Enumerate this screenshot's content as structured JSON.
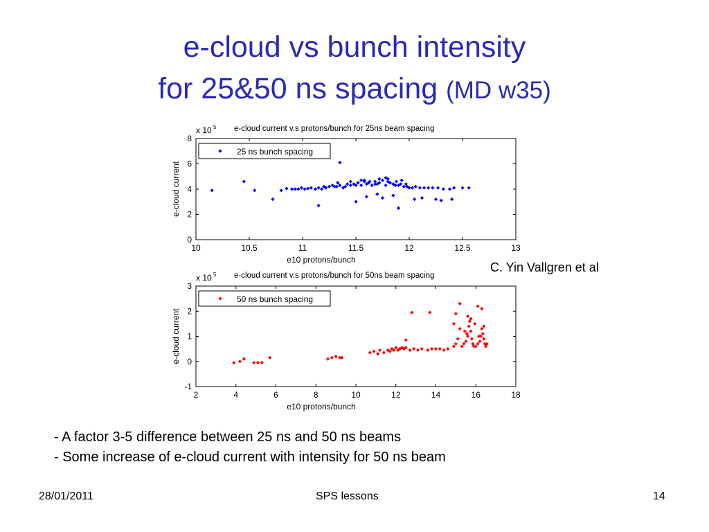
{
  "slide": {
    "title_line1": "e-cloud vs bunch intensity",
    "title_line2": "for 25&50 ns spacing",
    "title_suffix": "(MD w35)",
    "credit": "C. Yin Vallgren et al",
    "bullets": [
      "-  A factor 3-5 difference between 25 ns and 50 ns beams",
      "- Some increase of e-cloud current with intensity for 50 ns beam"
    ],
    "footer": {
      "date": "28/01/2011",
      "center": "SPS lessons",
      "page": "14"
    }
  },
  "chart_data": [
    {
      "type": "scatter",
      "title": "e-cloud current v.s protons/bunch for 25ns beam spacing",
      "xlabel": "e10 protons/bunch",
      "ylabel": "e-cloud current",
      "y_multiplier": "x 10",
      "y_multiplier_exp": "5",
      "xlim": [
        10,
        13
      ],
      "ylim": [
        0,
        8
      ],
      "xticks": [
        10,
        10.5,
        11,
        11.5,
        12,
        12.5,
        13
      ],
      "xtick_labels": [
        "10",
        "10.5",
        "11",
        "11.5",
        "12",
        "12.5",
        "13"
      ],
      "yticks": [
        0,
        2,
        4,
        6,
        8
      ],
      "ytick_labels": [
        "0",
        "2",
        "4",
        "6",
        "8"
      ],
      "legend_position": "top-left",
      "series": [
        {
          "name": "25 ns bunch spacing",
          "color": "#0000ff",
          "marker": "diamond",
          "x": [
            10.15,
            10.45,
            10.55,
            10.72,
            10.8,
            10.85,
            10.9,
            10.93,
            10.96,
            10.99,
            11.02,
            11.05,
            11.08,
            11.12,
            11.15,
            11.18,
            11.2,
            11.22,
            11.25,
            11.28,
            11.3,
            11.32,
            11.35,
            11.38,
            11.4,
            11.42,
            11.45,
            11.48,
            11.5,
            11.52,
            11.55,
            11.58,
            11.6,
            11.62,
            11.65,
            11.68,
            11.7,
            11.72,
            11.75,
            11.78,
            11.8,
            11.82,
            11.85,
            11.88,
            11.9,
            11.92,
            11.95,
            11.98,
            12.0,
            12.03,
            12.06,
            12.1,
            12.14,
            12.18,
            12.22,
            12.27,
            12.32,
            12.38,
            12.42,
            12.5,
            12.56,
            11.15,
            11.35,
            11.5,
            11.6,
            11.75,
            11.85,
            11.9,
            12.05,
            12.12,
            12.25,
            12.3,
            12.4,
            11.33,
            11.45,
            11.55,
            11.68,
            11.72,
            11.78,
            11.82,
            11.87,
            11.93,
            11.97,
            11.63,
            11.58,
            11.8,
            11.7
          ],
          "y": [
            3.9,
            4.6,
            3.9,
            3.2,
            3.9,
            4.05,
            4.0,
            4.0,
            4.0,
            4.1,
            4.0,
            4.05,
            4.1,
            4.0,
            4.1,
            4.0,
            4.2,
            4.1,
            4.2,
            4.3,
            4.2,
            4.2,
            4.3,
            4.1,
            4.2,
            4.4,
            4.3,
            4.4,
            4.3,
            4.5,
            4.3,
            4.6,
            4.4,
            4.5,
            4.3,
            4.6,
            4.4,
            4.5,
            4.7,
            4.3,
            4.6,
            4.5,
            4.4,
            4.6,
            4.3,
            4.4,
            4.2,
            4.2,
            4.1,
            4.1,
            4.2,
            4.1,
            4.1,
            4.1,
            4.1,
            4.1,
            4.0,
            4.0,
            4.1,
            4.1,
            4.1,
            2.7,
            6.1,
            3.0,
            3.4,
            3.3,
            3.5,
            2.5,
            3.2,
            3.3,
            3.2,
            3.1,
            3.2,
            4.5,
            4.6,
            4.7,
            4.4,
            4.8,
            4.9,
            4.5,
            4.3,
            4.7,
            4.4,
            4.6,
            4.7,
            4.8,
            3.6
          ]
        }
      ]
    },
    {
      "type": "scatter",
      "title": "e-cloud current v.s protons/bunch for 50ns beam spacing",
      "xlabel": "e10 protons/bunch",
      "ylabel": "e-cloud current",
      "y_multiplier": "x 10",
      "y_multiplier_exp": "5",
      "xlim": [
        2,
        18
      ],
      "ylim": [
        -1,
        3
      ],
      "xticks": [
        2,
        4,
        6,
        8,
        10,
        12,
        14,
        16,
        18
      ],
      "xtick_labels": [
        "2",
        "4",
        "6",
        "8",
        "10",
        "12",
        "14",
        "16",
        "18"
      ],
      "yticks": [
        -1,
        0,
        1,
        2,
        3
      ],
      "ytick_labels": [
        "-1",
        "0",
        "1",
        "2",
        "3"
      ],
      "legend_position": "top-left",
      "series": [
        {
          "name": "50 ns bunch spacing",
          "color": "#ff0000",
          "marker": "diamond",
          "x": [
            3.9,
            4.2,
            4.4,
            4.9,
            5.1,
            5.3,
            5.7,
            8.6,
            8.8,
            9.0,
            9.2,
            9.3,
            10.7,
            10.9,
            11.1,
            11.2,
            11.4,
            11.6,
            11.7,
            11.8,
            11.9,
            12.0,
            12.1,
            12.2,
            12.3,
            12.4,
            12.5,
            12.7,
            12.9,
            13.1,
            13.3,
            13.6,
            13.8,
            14.0,
            14.2,
            14.4,
            14.6,
            14.9,
            15.0,
            15.1,
            15.2,
            15.3,
            15.4,
            15.5,
            15.6,
            15.65,
            15.7,
            15.75,
            15.8,
            15.85,
            15.9,
            16.0,
            16.1,
            16.2,
            16.25,
            16.3,
            16.35,
            16.4,
            16.45,
            16.5,
            16.55,
            12.5,
            12.8,
            13.7,
            14.9,
            15.2,
            15.6,
            15.75,
            16.1,
            16.3,
            15.0,
            15.45,
            15.55,
            15.95,
            16.15,
            16.4
          ],
          "y": [
            -0.05,
            0.0,
            0.1,
            -0.05,
            -0.05,
            -0.05,
            0.15,
            0.1,
            0.15,
            0.2,
            0.15,
            0.15,
            0.35,
            0.4,
            0.3,
            0.45,
            0.35,
            0.45,
            0.4,
            0.5,
            0.45,
            0.55,
            0.45,
            0.5,
            0.55,
            0.5,
            0.55,
            0.45,
            0.5,
            0.45,
            0.5,
            0.45,
            0.5,
            0.5,
            0.5,
            0.45,
            0.5,
            0.6,
            0.7,
            0.9,
            1.3,
            0.6,
            0.7,
            0.8,
            1.0,
            1.4,
            1.6,
            1.2,
            0.9,
            0.7,
            0.6,
            0.6,
            0.7,
            0.8,
            1.0,
            1.3,
            1.1,
            0.9,
            0.7,
            0.6,
            0.7,
            0.85,
            1.95,
            1.95,
            1.5,
            2.3,
            1.8,
            1.7,
            2.2,
            2.1,
            1.9,
            1.2,
            1.1,
            1.5,
            1.0,
            1.4
          ]
        }
      ]
    }
  ]
}
